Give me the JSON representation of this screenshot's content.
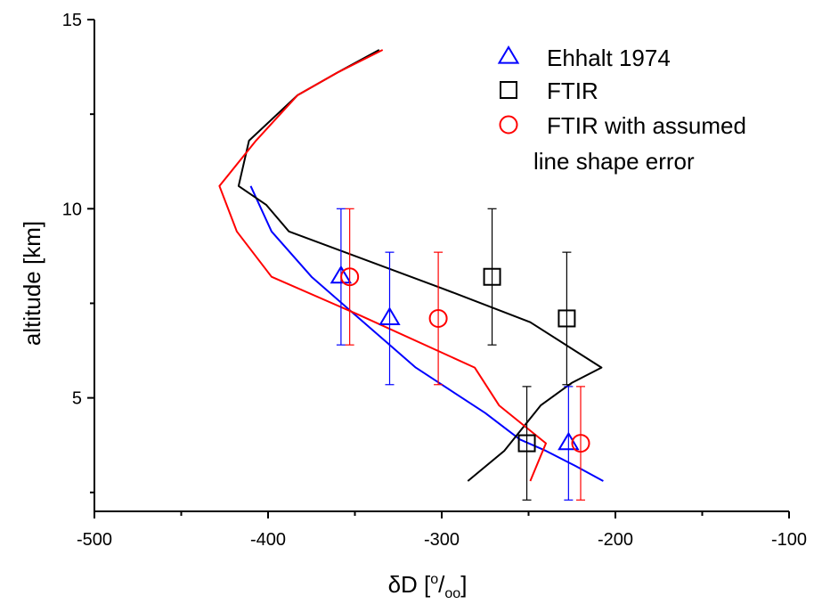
{
  "chart_data": {
    "type": "line",
    "xlabel": "δD [°/oo]",
    "ylabel": "altitude [km]",
    "xlim": [
      -500,
      -100
    ],
    "ylim": [
      2,
      15
    ],
    "x_ticks": [
      "-500",
      "-400",
      "-300",
      "-200",
      "-100"
    ],
    "y_ticks": [
      "5",
      "10",
      "15"
    ],
    "grid": false,
    "legend_position": "top-right",
    "legend": [
      {
        "label": "Ehhalt 1974",
        "marker": "triangle",
        "color": "#0000ff"
      },
      {
        "label": "FTIR",
        "marker": "square",
        "color": "#000000"
      },
      {
        "label": "FTIR with assumed",
        "marker": "circle",
        "color": "#ff0000"
      },
      {
        "label": "line shape error",
        "marker": "none",
        "color": "#000000"
      }
    ],
    "lines": [
      {
        "color": "#0000ff",
        "points": [
          [
            -410,
            10.6
          ],
          [
            -398,
            9.4
          ],
          [
            -375,
            8.2
          ],
          [
            -350,
            7.2
          ],
          [
            -315,
            5.8
          ],
          [
            -275,
            4.6
          ],
          [
            -255,
            3.9
          ],
          [
            -240,
            3.6
          ],
          [
            -223,
            3.2
          ],
          [
            -207,
            2.8
          ]
        ]
      },
      {
        "color": "#000000",
        "points": [
          [
            -336,
            14.2
          ],
          [
            -360,
            13.6
          ],
          [
            -383,
            13.0
          ],
          [
            -411,
            11.8
          ],
          [
            -417,
            10.6
          ],
          [
            -401,
            10.1
          ],
          [
            -388,
            9.4
          ],
          [
            -300,
            7.9
          ],
          [
            -249,
            7.0
          ],
          [
            -208,
            5.8
          ],
          [
            -225,
            5.4
          ],
          [
            -243,
            4.8
          ],
          [
            -264,
            3.6
          ],
          [
            -285,
            2.8
          ]
        ]
      },
      {
        "color": "#ff0000",
        "points": [
          [
            -334,
            14.2
          ],
          [
            -360,
            13.6
          ],
          [
            -383,
            13.0
          ],
          [
            -407,
            11.8
          ],
          [
            -428,
            10.6
          ],
          [
            -418,
            9.4
          ],
          [
            -398,
            8.2
          ],
          [
            -348,
            7.2
          ],
          [
            -281,
            5.8
          ],
          [
            -267,
            4.8
          ],
          [
            -240,
            3.8
          ],
          [
            -249,
            2.8
          ]
        ]
      }
    ],
    "points": [
      {
        "marker": "triangle",
        "color": "#0000ff",
        "x": -358,
        "y": 8.2,
        "err_low": 6.4,
        "err_high": 10.0
      },
      {
        "marker": "triangle",
        "color": "#0000ff",
        "x": -330,
        "y": 7.1,
        "err_low": 5.35,
        "err_high": 8.85
      },
      {
        "marker": "triangle",
        "color": "#0000ff",
        "x": -227,
        "y": 3.8,
        "err_low": 2.3,
        "err_high": 5.3
      },
      {
        "marker": "square",
        "color": "#000000",
        "x": -271,
        "y": 8.2,
        "err_low": 6.4,
        "err_high": 10.0
      },
      {
        "marker": "square",
        "color": "#000000",
        "x": -228,
        "y": 7.1,
        "err_low": 5.35,
        "err_high": 8.85
      },
      {
        "marker": "square",
        "color": "#000000",
        "x": -251,
        "y": 3.8,
        "err_low": 2.3,
        "err_high": 5.3
      },
      {
        "marker": "circle",
        "color": "#ff0000",
        "x": -353,
        "y": 8.2,
        "err_low": 6.4,
        "err_high": 10.0
      },
      {
        "marker": "circle",
        "color": "#ff0000",
        "x": -302,
        "y": 7.1,
        "err_low": 5.35,
        "err_high": 8.85
      },
      {
        "marker": "circle",
        "color": "#ff0000",
        "x": -220,
        "y": 3.8,
        "err_low": 2.3,
        "err_high": 5.3
      }
    ]
  }
}
